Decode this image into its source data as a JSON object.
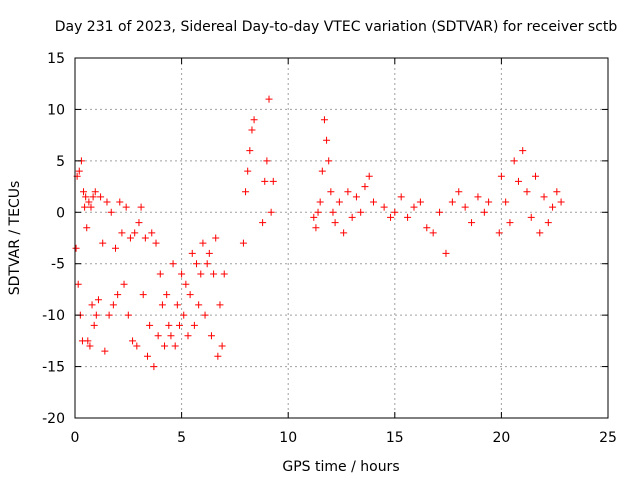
{
  "chart_data": {
    "type": "scatter",
    "title": "Day 231 of 2023, Sidereal Day-to-day VTEC variation (SDTVAR) for receiver sctb",
    "xlabel": "GPS time / hours",
    "ylabel": "SDTVAR / TECUs",
    "xlim": [
      0,
      25
    ],
    "ylim": [
      -20,
      15
    ],
    "xticks": [
      0,
      5,
      10,
      15,
      20,
      25
    ],
    "yticks": [
      -20,
      -15,
      -10,
      -5,
      0,
      5,
      10,
      15
    ],
    "grid": true,
    "marker": "+",
    "color": "#ff0000",
    "series": [
      {
        "name": "SDTVAR",
        "x": [
          0.05,
          0.1,
          0.15,
          0.2,
          0.25,
          0.3,
          0.35,
          0.4,
          0.45,
          0.5,
          0.55,
          0.6,
          0.65,
          0.7,
          0.75,
          0.8,
          0.85,
          0.9,
          0.95,
          1.0,
          1.1,
          1.2,
          1.3,
          1.4,
          1.5,
          1.6,
          1.7,
          1.8,
          1.9,
          2.0,
          2.1,
          2.2,
          2.3,
          2.4,
          2.5,
          2.6,
          2.7,
          2.8,
          2.9,
          3.0,
          3.1,
          3.2,
          3.3,
          3.4,
          3.5,
          3.6,
          3.7,
          3.8,
          3.9,
          4.0,
          4.1,
          4.2,
          4.3,
          4.4,
          4.5,
          4.6,
          4.7,
          4.8,
          4.9,
          5.0,
          5.1,
          5.2,
          5.3,
          5.4,
          5.5,
          5.6,
          5.7,
          5.8,
          5.9,
          6.0,
          6.1,
          6.2,
          6.3,
          6.4,
          6.5,
          6.6,
          6.7,
          6.8,
          6.9,
          7.0,
          7.9,
          8.0,
          8.1,
          8.2,
          8.3,
          8.4,
          8.8,
          8.9,
          9.0,
          9.1,
          9.2,
          9.3,
          11.2,
          11.3,
          11.4,
          11.5,
          11.6,
          11.7,
          11.8,
          11.9,
          12.0,
          12.1,
          12.2,
          12.4,
          12.6,
          12.8,
          13.0,
          13.2,
          13.4,
          13.6,
          13.8,
          14.0,
          14.5,
          14.8,
          15.0,
          15.3,
          15.6,
          15.9,
          16.2,
          16.5,
          16.8,
          17.1,
          17.4,
          17.7,
          18.0,
          18.3,
          18.6,
          18.9,
          19.2,
          19.4,
          19.9,
          20.0,
          20.2,
          20.4,
          20.6,
          20.8,
          21.0,
          21.2,
          21.4,
          21.6,
          21.8,
          22.0,
          22.2,
          22.4,
          22.6,
          22.8
        ],
        "y": [
          -3.5,
          3.5,
          -7,
          4,
          -10,
          5,
          -12.5,
          2,
          0.5,
          1.5,
          -1.5,
          -12.5,
          1,
          -13,
          0.5,
          -9,
          1.5,
          -11,
          2,
          -10,
          -8.5,
          1.5,
          -3,
          -13.5,
          1,
          -10,
          0,
          -9,
          -3.5,
          -8,
          1,
          -2,
          -7,
          0.5,
          -10,
          -2.5,
          -12.5,
          -2,
          -13,
          -1,
          0.5,
          -8,
          -2.5,
          -14,
          -11,
          -2,
          -15,
          -3,
          -12,
          -6,
          -9,
          -13,
          -8,
          -11,
          -12,
          -5,
          -13,
          -9,
          -11,
          -6,
          -10,
          -7,
          -12,
          -8,
          -4,
          -11,
          -5,
          -9,
          -6,
          -3,
          -10,
          -5,
          -4,
          -12,
          -6,
          -2.5,
          -14,
          -9,
          -13,
          -6,
          -3,
          2,
          4,
          6,
          8,
          9,
          -1,
          3,
          5,
          11,
          0,
          3,
          -0.5,
          -1.5,
          0,
          1,
          4,
          9,
          7,
          5,
          2,
          0,
          -1,
          1,
          -2,
          2,
          -0.5,
          1.5,
          0,
          2.5,
          3.5,
          1,
          0.5,
          -0.5,
          0,
          1.5,
          -0.5,
          0.5,
          1,
          -1.5,
          -2,
          0,
          -4,
          1,
          2,
          0.5,
          -1,
          1.5,
          0,
          1,
          -2,
          3.5,
          1,
          -1,
          5,
          3,
          6,
          2,
          -0.5,
          3.5,
          -2,
          1.5,
          -1,
          0.5,
          2,
          1
        ]
      }
    ]
  }
}
